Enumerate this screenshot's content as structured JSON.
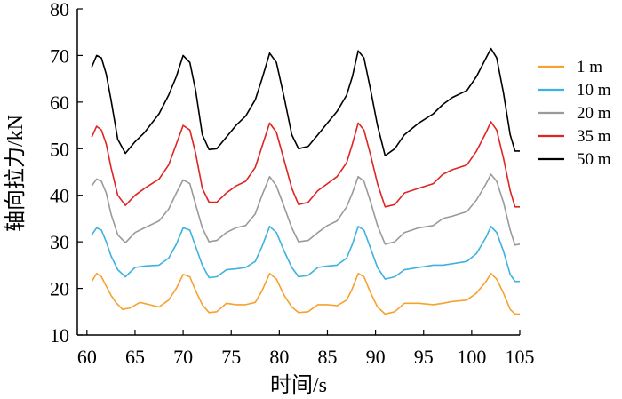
{
  "chart_data": {
    "type": "line",
    "title": "",
    "xlabel": "时间/s",
    "ylabel": "轴向拉力/kN",
    "xlim": [
      59,
      105
    ],
    "ylim": [
      10,
      80
    ],
    "xticks": [
      60,
      65,
      70,
      75,
      80,
      85,
      90,
      95,
      100,
      105
    ],
    "yticks": [
      10,
      20,
      30,
      40,
      50,
      60,
      70,
      80
    ],
    "x_tick_labels": [
      "60",
      "65",
      "70",
      "75",
      "80",
      "85",
      "90",
      "95",
      "100",
      "105"
    ],
    "y_tick_labels": [
      "10",
      "20",
      "30",
      "40",
      "50",
      "60",
      "70",
      "80"
    ],
    "grid": false,
    "legend_position": "right",
    "peak_times": [
      61,
      70,
      79,
      88,
      102
    ],
    "series": [
      {
        "name": "1 m",
        "color": "#F7A12E",
        "points": [
          [
            60.5,
            21.5
          ],
          [
            61,
            23.2
          ],
          [
            61.5,
            22.5
          ],
          [
            62,
            20.5
          ],
          [
            62.5,
            18.5
          ],
          [
            63,
            17
          ],
          [
            63.7,
            15.5
          ],
          [
            64.5,
            15.8
          ],
          [
            65.5,
            17
          ],
          [
            66.5,
            16.5
          ],
          [
            67.5,
            16
          ],
          [
            68.5,
            17.5
          ],
          [
            69.3,
            20
          ],
          [
            70,
            23
          ],
          [
            70.7,
            22.5
          ],
          [
            71.3,
            19.5
          ],
          [
            72,
            16.5
          ],
          [
            72.7,
            14.8
          ],
          [
            73.5,
            15
          ],
          [
            74.5,
            16.8
          ],
          [
            75.5,
            16.5
          ],
          [
            76.5,
            16.5
          ],
          [
            77.5,
            17
          ],
          [
            78.2,
            19.5
          ],
          [
            79,
            23.2
          ],
          [
            79.7,
            22
          ],
          [
            80.5,
            18.5
          ],
          [
            81.3,
            16
          ],
          [
            82,
            14.8
          ],
          [
            83,
            15
          ],
          [
            84,
            16.5
          ],
          [
            85,
            16.5
          ],
          [
            86,
            16.3
          ],
          [
            87,
            17.5
          ],
          [
            87.6,
            20
          ],
          [
            88.2,
            23.2
          ],
          [
            88.8,
            22.5
          ],
          [
            89.5,
            19
          ],
          [
            90.2,
            16
          ],
          [
            91,
            14.5
          ],
          [
            92,
            15
          ],
          [
            93,
            16.8
          ],
          [
            94.5,
            16.8
          ],
          [
            96,
            16.5
          ],
          [
            97,
            16.8
          ],
          [
            98,
            17.2
          ],
          [
            99.5,
            17.5
          ],
          [
            100.5,
            19
          ],
          [
            101.5,
            21.5
          ],
          [
            102,
            23.2
          ],
          [
            102.6,
            22
          ],
          [
            103.3,
            19
          ],
          [
            104,
            15.5
          ],
          [
            104.5,
            14.5
          ],
          [
            105,
            14.5
          ]
        ]
      },
      {
        "name": "10 m",
        "color": "#3DB1E0",
        "points": [
          [
            60.5,
            31.5
          ],
          [
            61,
            33
          ],
          [
            61.5,
            32.5
          ],
          [
            62,
            30
          ],
          [
            62.5,
            27
          ],
          [
            63.2,
            24
          ],
          [
            64,
            22.5
          ],
          [
            65,
            24.5
          ],
          [
            66,
            24.8
          ],
          [
            67.5,
            25
          ],
          [
            68.5,
            26.5
          ],
          [
            69.3,
            29.5
          ],
          [
            70,
            33
          ],
          [
            70.7,
            32.5
          ],
          [
            71.3,
            29
          ],
          [
            72,
            25
          ],
          [
            72.7,
            22.3
          ],
          [
            73.5,
            22.5
          ],
          [
            74.5,
            24
          ],
          [
            75.5,
            24.2
          ],
          [
            76.5,
            24.5
          ],
          [
            77.5,
            25.8
          ],
          [
            78.2,
            29
          ],
          [
            79,
            33.3
          ],
          [
            79.7,
            32
          ],
          [
            80.5,
            28
          ],
          [
            81.3,
            24.5
          ],
          [
            82,
            22.5
          ],
          [
            83,
            22.8
          ],
          [
            84,
            24.5
          ],
          [
            85,
            24.8
          ],
          [
            86,
            25
          ],
          [
            87,
            26.5
          ],
          [
            87.6,
            29.5
          ],
          [
            88.2,
            33.3
          ],
          [
            88.8,
            32.5
          ],
          [
            89.5,
            28.5
          ],
          [
            90.2,
            24.5
          ],
          [
            91,
            22
          ],
          [
            92,
            22.5
          ],
          [
            93,
            24
          ],
          [
            94.5,
            24.5
          ],
          [
            96,
            25
          ],
          [
            97,
            25
          ],
          [
            98,
            25.3
          ],
          [
            99.5,
            25.8
          ],
          [
            100.5,
            27.5
          ],
          [
            101.5,
            31
          ],
          [
            102,
            33.3
          ],
          [
            102.6,
            32
          ],
          [
            103.3,
            28
          ],
          [
            104,
            23
          ],
          [
            104.5,
            21.5
          ],
          [
            105,
            21.5
          ]
        ]
      },
      {
        "name": "20 m",
        "color": "#9A9A9A",
        "points": [
          [
            60.5,
            42
          ],
          [
            61,
            43.5
          ],
          [
            61.5,
            43
          ],
          [
            62,
            40.5
          ],
          [
            62.5,
            36
          ],
          [
            63.2,
            31.5
          ],
          [
            64,
            29.8
          ],
          [
            65,
            32
          ],
          [
            66,
            33
          ],
          [
            67.5,
            34.5
          ],
          [
            68.5,
            37
          ],
          [
            69.3,
            40.5
          ],
          [
            70,
            43.3
          ],
          [
            70.7,
            42.5
          ],
          [
            71.3,
            38
          ],
          [
            72,
            33
          ],
          [
            72.7,
            30
          ],
          [
            73.5,
            30.3
          ],
          [
            74.5,
            32
          ],
          [
            75.5,
            33
          ],
          [
            76.5,
            33.5
          ],
          [
            77.5,
            36
          ],
          [
            78.2,
            40
          ],
          [
            79,
            44
          ],
          [
            79.7,
            42
          ],
          [
            80.5,
            37.5
          ],
          [
            81.3,
            33
          ],
          [
            82,
            30
          ],
          [
            83,
            30.3
          ],
          [
            84,
            32
          ],
          [
            85,
            33.5
          ],
          [
            86,
            34.5
          ],
          [
            87,
            37.5
          ],
          [
            87.6,
            40.5
          ],
          [
            88.2,
            44
          ],
          [
            88.8,
            43
          ],
          [
            89.5,
            38.5
          ],
          [
            90.2,
            33.5
          ],
          [
            91,
            29.5
          ],
          [
            92,
            30
          ],
          [
            93,
            32
          ],
          [
            94.5,
            33
          ],
          [
            96,
            33.5
          ],
          [
            97,
            35
          ],
          [
            98,
            35.5
          ],
          [
            99.5,
            36.5
          ],
          [
            100.5,
            39
          ],
          [
            101.5,
            42.5
          ],
          [
            102,
            44.5
          ],
          [
            102.6,
            43
          ],
          [
            103.3,
            38.5
          ],
          [
            104,
            32.5
          ],
          [
            104.5,
            29.3
          ],
          [
            105,
            29.5
          ]
        ]
      },
      {
        "name": "35 m",
        "color": "#E02323",
        "points": [
          [
            60.5,
            52.5
          ],
          [
            61,
            54.8
          ],
          [
            61.5,
            54
          ],
          [
            62,
            51
          ],
          [
            62.5,
            46
          ],
          [
            63.2,
            40
          ],
          [
            64,
            37.8
          ],
          [
            65,
            40
          ],
          [
            66,
            41.5
          ],
          [
            67.5,
            43.5
          ],
          [
            68.5,
            46.5
          ],
          [
            69.3,
            51
          ],
          [
            70,
            55
          ],
          [
            70.7,
            54
          ],
          [
            71.3,
            49
          ],
          [
            72,
            41.5
          ],
          [
            72.7,
            38.5
          ],
          [
            73.5,
            38.5
          ],
          [
            74.5,
            40.5
          ],
          [
            75.5,
            42
          ],
          [
            76.5,
            43
          ],
          [
            77.5,
            46
          ],
          [
            78.2,
            50.5
          ],
          [
            79,
            55.5
          ],
          [
            79.7,
            53.5
          ],
          [
            80.5,
            47.5
          ],
          [
            81.3,
            41.5
          ],
          [
            82,
            38
          ],
          [
            83,
            38.5
          ],
          [
            84,
            41
          ],
          [
            85,
            42.5
          ],
          [
            86,
            44
          ],
          [
            87,
            47
          ],
          [
            87.6,
            51
          ],
          [
            88.2,
            55.5
          ],
          [
            88.8,
            54
          ],
          [
            89.5,
            48.5
          ],
          [
            90.2,
            42.5
          ],
          [
            91,
            37.5
          ],
          [
            92,
            38
          ],
          [
            93,
            40.5
          ],
          [
            94.5,
            41.5
          ],
          [
            96,
            42.5
          ],
          [
            97,
            44.5
          ],
          [
            98,
            45.5
          ],
          [
            99.5,
            46.5
          ],
          [
            100.5,
            49.5
          ],
          [
            101.5,
            53.5
          ],
          [
            102,
            55.8
          ],
          [
            102.6,
            54
          ],
          [
            103.3,
            48
          ],
          [
            104,
            41
          ],
          [
            104.5,
            37.5
          ],
          [
            105,
            37.5
          ]
        ]
      },
      {
        "name": "50 m",
        "color": "#000000",
        "points": [
          [
            60.5,
            67.5
          ],
          [
            61,
            70
          ],
          [
            61.5,
            69.5
          ],
          [
            62,
            66
          ],
          [
            62.5,
            60.5
          ],
          [
            63.2,
            52
          ],
          [
            64,
            49
          ],
          [
            65,
            51.5
          ],
          [
            66,
            53.5
          ],
          [
            67.5,
            57.5
          ],
          [
            68.5,
            61.5
          ],
          [
            69.3,
            65.5
          ],
          [
            70,
            70
          ],
          [
            70.7,
            68.5
          ],
          [
            71.3,
            62.5
          ],
          [
            72,
            53
          ],
          [
            72.7,
            49.8
          ],
          [
            73.5,
            50
          ],
          [
            74.5,
            52.5
          ],
          [
            75.5,
            55
          ],
          [
            76.5,
            57
          ],
          [
            77.5,
            60.5
          ],
          [
            78.2,
            65
          ],
          [
            79,
            70.5
          ],
          [
            79.7,
            68.5
          ],
          [
            80.5,
            61
          ],
          [
            81.3,
            53
          ],
          [
            82,
            50
          ],
          [
            83,
            50.5
          ],
          [
            84,
            53
          ],
          [
            85,
            55.5
          ],
          [
            86,
            58
          ],
          [
            87,
            61.5
          ],
          [
            87.6,
            65.5
          ],
          [
            88.2,
            71
          ],
          [
            88.8,
            69.5
          ],
          [
            89.5,
            62.5
          ],
          [
            90.2,
            55
          ],
          [
            91,
            48.5
          ],
          [
            92,
            50
          ],
          [
            93,
            53
          ],
          [
            94.5,
            55.5
          ],
          [
            96,
            57.5
          ],
          [
            97,
            59.5
          ],
          [
            98,
            61
          ],
          [
            99.5,
            62.5
          ],
          [
            100.5,
            65.5
          ],
          [
            101.5,
            69.5
          ],
          [
            102,
            71.5
          ],
          [
            102.6,
            69.5
          ],
          [
            103.3,
            62
          ],
          [
            104,
            53
          ],
          [
            104.5,
            49.5
          ],
          [
            105,
            49.5
          ]
        ]
      }
    ]
  }
}
